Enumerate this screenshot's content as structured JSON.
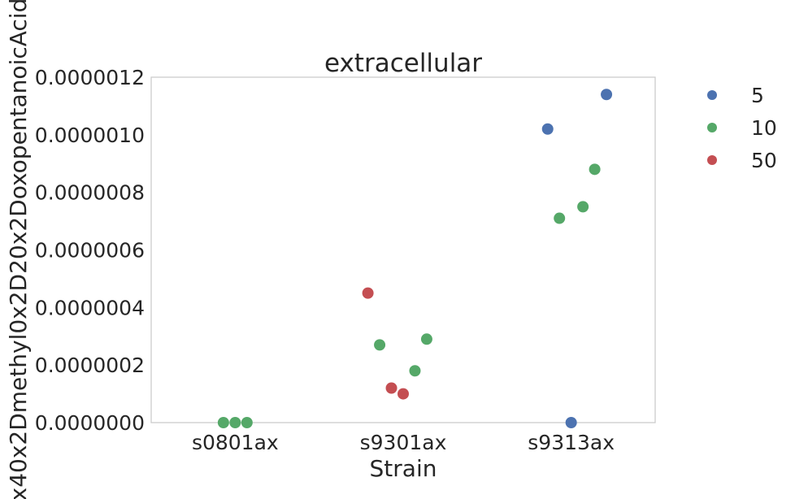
{
  "chart_data": {
    "type": "scatter",
    "title": "extracellular",
    "xlabel": "Strain",
    "ylabel": "x40x2Dmethyl0x2D20x2DoxopentanoicAcid",
    "categories": [
      "s0801ax",
      "s9301ax",
      "s9313ax"
    ],
    "ylim": [
      0,
      1.2e-06
    ],
    "yticks": [
      "0.0000000",
      "0.0000002",
      "0.0000004",
      "0.0000006",
      "0.0000008",
      "0.0000010",
      "0.0000012"
    ],
    "ytick_values": [
      0,
      2e-07,
      4e-07,
      6e-07,
      8e-07,
      1e-06,
      1.2e-06
    ],
    "grid": false,
    "legend_position": "outside right, top",
    "series": [
      {
        "name": "5",
        "color": "#4c72b0",
        "points": [
          {
            "category": "s9313ax",
            "jitter": -0.14,
            "y": 1.02e-06
          },
          {
            "category": "s9313ax",
            "jitter": 0.21,
            "y": 1.14e-06
          },
          {
            "category": "s9313ax",
            "jitter": 0.0,
            "y": 0.0
          }
        ]
      },
      {
        "name": "10",
        "color": "#55a868",
        "points": [
          {
            "category": "s0801ax",
            "jitter": -0.07,
            "y": 0.0
          },
          {
            "category": "s0801ax",
            "jitter": 0.0,
            "y": 0.0
          },
          {
            "category": "s0801ax",
            "jitter": 0.07,
            "y": 0.0
          },
          {
            "category": "s9301ax",
            "jitter": -0.14,
            "y": 2.7e-07
          },
          {
            "category": "s9301ax",
            "jitter": 0.14,
            "y": 2.9e-07
          },
          {
            "category": "s9301ax",
            "jitter": 0.07,
            "y": 1.8e-07
          },
          {
            "category": "s9313ax",
            "jitter": -0.07,
            "y": 7.1e-07
          },
          {
            "category": "s9313ax",
            "jitter": 0.07,
            "y": 7.5e-07
          },
          {
            "category": "s9313ax",
            "jitter": 0.14,
            "y": 8.8e-07
          }
        ]
      },
      {
        "name": "50",
        "color": "#c44e52",
        "points": [
          {
            "category": "s9301ax",
            "jitter": -0.21,
            "y": 4.5e-07
          },
          {
            "category": "s9301ax",
            "jitter": -0.07,
            "y": 1.2e-07
          },
          {
            "category": "s9301ax",
            "jitter": 0.0,
            "y": 1e-07
          }
        ]
      }
    ]
  }
}
